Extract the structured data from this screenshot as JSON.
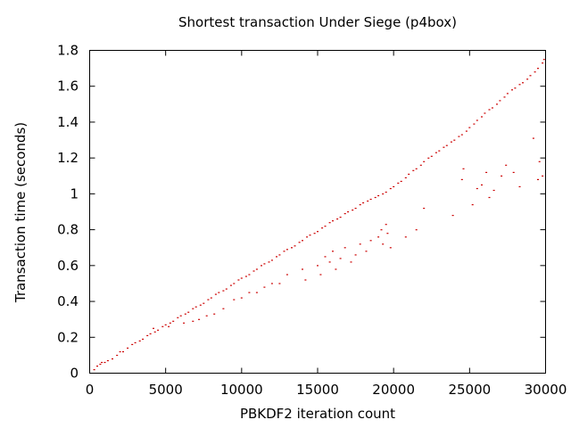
{
  "chart_data": {
    "type": "scatter",
    "title": "Shortest transaction Under Siege (p4box)",
    "xlabel": "PBKDF2 iteration count",
    "ylabel": "Transaction time (seconds)",
    "xlim": [
      0,
      30000
    ],
    "ylim": [
      0,
      1.8
    ],
    "xticks": [
      "0",
      "5000",
      "10000",
      "15000",
      "20000",
      "25000",
      "30000"
    ],
    "yticks": [
      "0",
      "0.2",
      "0.4",
      "0.6",
      "0.8",
      "1",
      "1.2",
      "1.4",
      "1.6",
      "1.8"
    ],
    "grid": false,
    "legend": "none",
    "marker_color": "#cc0000",
    "series": [
      {
        "points": [
          [
            300,
            0.02
          ],
          [
            500,
            0.04
          ],
          [
            800,
            0.06
          ],
          [
            1000,
            0.06
          ],
          [
            1500,
            0.08
          ],
          [
            2000,
            0.12
          ],
          [
            2500,
            0.14
          ],
          [
            3000,
            0.17
          ],
          [
            3500,
            0.19
          ],
          [
            4000,
            0.22
          ],
          [
            4500,
            0.24
          ],
          [
            5000,
            0.27
          ],
          [
            5500,
            0.29
          ],
          [
            6000,
            0.32
          ],
          [
            6500,
            0.34
          ],
          [
            7000,
            0.37
          ],
          [
            7500,
            0.39
          ],
          [
            8000,
            0.42
          ],
          [
            8500,
            0.45
          ],
          [
            9000,
            0.47
          ],
          [
            9500,
            0.5
          ],
          [
            10000,
            0.53
          ],
          [
            10500,
            0.55
          ],
          [
            11000,
            0.58
          ],
          [
            11500,
            0.61
          ],
          [
            12000,
            0.63
          ],
          [
            12500,
            0.66
          ],
          [
            13000,
            0.69
          ],
          [
            13500,
            0.71
          ],
          [
            14000,
            0.74
          ],
          [
            14500,
            0.77
          ],
          [
            15000,
            0.79
          ],
          [
            15500,
            0.82
          ],
          [
            16000,
            0.85
          ],
          [
            16500,
            0.87
          ],
          [
            17000,
            0.9
          ],
          [
            17500,
            0.92
          ],
          [
            18000,
            0.95
          ],
          [
            18500,
            0.97
          ],
          [
            19000,
            0.99
          ],
          [
            19500,
            1.01
          ],
          [
            20000,
            1.04
          ],
          [
            20500,
            1.07
          ],
          [
            21000,
            1.11
          ],
          [
            21500,
            1.14
          ],
          [
            22000,
            1.18
          ],
          [
            22500,
            1.21
          ],
          [
            23000,
            1.24
          ],
          [
            23500,
            1.27
          ],
          [
            24000,
            1.3
          ],
          [
            24500,
            1.33
          ],
          [
            25000,
            1.37
          ],
          [
            25500,
            1.41
          ],
          [
            26000,
            1.45
          ],
          [
            26500,
            1.48
          ],
          [
            27000,
            1.52
          ],
          [
            27500,
            1.56
          ],
          [
            28000,
            1.59
          ],
          [
            28500,
            1.62
          ],
          [
            29000,
            1.66
          ],
          [
            29500,
            1.7
          ],
          [
            29800,
            1.73
          ],
          [
            700,
            0.05
          ],
          [
            1200,
            0.07
          ],
          [
            1800,
            0.1
          ],
          [
            2200,
            0.12
          ],
          [
            2800,
            0.16
          ],
          [
            3300,
            0.18
          ],
          [
            3800,
            0.21
          ],
          [
            4300,
            0.23
          ],
          [
            4800,
            0.26
          ],
          [
            5300,
            0.28
          ],
          [
            5800,
            0.31
          ],
          [
            6300,
            0.33
          ],
          [
            6800,
            0.36
          ],
          [
            7300,
            0.38
          ],
          [
            7800,
            0.41
          ],
          [
            8300,
            0.44
          ],
          [
            8800,
            0.46
          ],
          [
            9300,
            0.49
          ],
          [
            9800,
            0.52
          ],
          [
            10300,
            0.54
          ],
          [
            10800,
            0.57
          ],
          [
            11300,
            0.6
          ],
          [
            11800,
            0.62
          ],
          [
            12300,
            0.65
          ],
          [
            12800,
            0.68
          ],
          [
            13300,
            0.7
          ],
          [
            13800,
            0.73
          ],
          [
            14300,
            0.76
          ],
          [
            14800,
            0.78
          ],
          [
            15300,
            0.81
          ],
          [
            15800,
            0.84
          ],
          [
            16300,
            0.86
          ],
          [
            16800,
            0.89
          ],
          [
            17300,
            0.91
          ],
          [
            17800,
            0.94
          ],
          [
            18300,
            0.96
          ],
          [
            18800,
            0.98
          ],
          [
            19300,
            1.0
          ],
          [
            19800,
            1.03
          ],
          [
            20300,
            1.06
          ],
          [
            20800,
            1.09
          ],
          [
            21300,
            1.13
          ],
          [
            21800,
            1.16
          ],
          [
            22300,
            1.2
          ],
          [
            22800,
            1.23
          ],
          [
            23300,
            1.26
          ],
          [
            23800,
            1.29
          ],
          [
            24300,
            1.32
          ],
          [
            24800,
            1.35
          ],
          [
            25300,
            1.39
          ],
          [
            25800,
            1.43
          ],
          [
            26300,
            1.47
          ],
          [
            26800,
            1.5
          ],
          [
            27300,
            1.54
          ],
          [
            27800,
            1.58
          ],
          [
            28300,
            1.61
          ],
          [
            28800,
            1.64
          ],
          [
            29300,
            1.68
          ],
          [
            29900,
            1.75
          ],
          [
            4200,
            0.25
          ],
          [
            5200,
            0.26
          ],
          [
            6200,
            0.28
          ],
          [
            6800,
            0.29
          ],
          [
            7200,
            0.3
          ],
          [
            7700,
            0.32
          ],
          [
            8200,
            0.33
          ],
          [
            8800,
            0.36
          ],
          [
            9500,
            0.41
          ],
          [
            10000,
            0.42
          ],
          [
            10500,
            0.45
          ],
          [
            11000,
            0.45
          ],
          [
            11500,
            0.48
          ],
          [
            12000,
            0.5
          ],
          [
            12500,
            0.5
          ],
          [
            13000,
            0.55
          ],
          [
            14000,
            0.58
          ],
          [
            14200,
            0.52
          ],
          [
            15000,
            0.6
          ],
          [
            15200,
            0.55
          ],
          [
            15500,
            0.65
          ],
          [
            15800,
            0.62
          ],
          [
            16000,
            0.68
          ],
          [
            16200,
            0.58
          ],
          [
            16500,
            0.64
          ],
          [
            16800,
            0.7
          ],
          [
            17200,
            0.62
          ],
          [
            17500,
            0.66
          ],
          [
            17800,
            0.72
          ],
          [
            18200,
            0.68
          ],
          [
            18500,
            0.74
          ],
          [
            19000,
            0.76
          ],
          [
            19200,
            0.8
          ],
          [
            19300,
            0.72
          ],
          [
            19500,
            0.83
          ],
          [
            19600,
            0.78
          ],
          [
            19800,
            0.7
          ],
          [
            20800,
            0.76
          ],
          [
            21500,
            0.8
          ],
          [
            22000,
            0.92
          ],
          [
            23900,
            0.88
          ],
          [
            24500,
            1.08
          ],
          [
            24600,
            1.14
          ],
          [
            25200,
            0.94
          ],
          [
            25500,
            1.03
          ],
          [
            25800,
            1.05
          ],
          [
            26100,
            1.12
          ],
          [
            26300,
            0.98
          ],
          [
            26600,
            1.02
          ],
          [
            27100,
            1.1
          ],
          [
            27400,
            1.16
          ],
          [
            27900,
            1.12
          ],
          [
            28300,
            1.04
          ],
          [
            29200,
            1.31
          ],
          [
            29500,
            1.08
          ],
          [
            29600,
            1.18
          ],
          [
            29800,
            1.1
          ]
        ]
      }
    ]
  }
}
